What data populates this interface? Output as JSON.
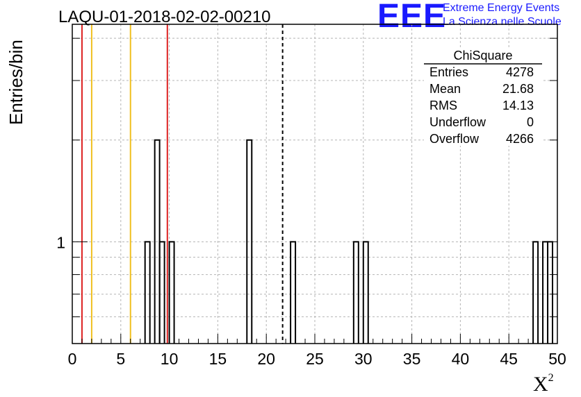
{
  "title": "LAQU-01-2018-02-02-00210",
  "logo": {
    "text": "EEE",
    "line1": "Extreme Energy Events",
    "line2": "La Scienza nelle Scuole",
    "color": "#1a1aff"
  },
  "colors": {
    "red_line": "#dd2222",
    "yellow_line": "#f0c020",
    "grid": "#b4b4b4"
  },
  "stats": {
    "title": "ChiSquare",
    "rows": [
      {
        "label": "Entries",
        "value": "4278"
      },
      {
        "label": "Mean",
        "value": "21.68"
      },
      {
        "label": "RMS",
        "value": "14.13"
      },
      {
        "label": "Underflow",
        "value": "0"
      },
      {
        "label": "Overflow",
        "value": "4266"
      }
    ]
  },
  "chart_data": {
    "type": "bar",
    "ylabel": "Entries/bin",
    "xlabel_main": "X",
    "xlabel_sup": "2",
    "xlim": [
      0,
      50
    ],
    "y_scale": "log",
    "ylim": [
      0.5,
      4.4
    ],
    "grid": true,
    "bin_width": 0.5,
    "x_ticks": [
      "0",
      "5",
      "10",
      "15",
      "20",
      "25",
      "30",
      "35",
      "40",
      "45",
      "50"
    ],
    "y_tick_label": "1",
    "bins": [
      {
        "x": 7.5,
        "count": 1
      },
      {
        "x": 8.5,
        "count": 2
      },
      {
        "x": 9.0,
        "count": 1
      },
      {
        "x": 10.0,
        "count": 1
      },
      {
        "x": 18.0,
        "count": 2
      },
      {
        "x": 22.5,
        "count": 1
      },
      {
        "x": 29.0,
        "count": 1
      },
      {
        "x": 30.0,
        "count": 1
      },
      {
        "x": 47.5,
        "count": 1
      },
      {
        "x": 48.5,
        "count": 1
      },
      {
        "x": 49.0,
        "count": 1
      }
    ],
    "vertical_lines": [
      {
        "x": 1.0,
        "color": "red"
      },
      {
        "x": 2.0,
        "color": "yellow"
      },
      {
        "x": 6.0,
        "color": "yellow"
      },
      {
        "x": 9.8,
        "color": "red"
      },
      {
        "x": 21.68,
        "color": "black-dashed"
      }
    ]
  }
}
